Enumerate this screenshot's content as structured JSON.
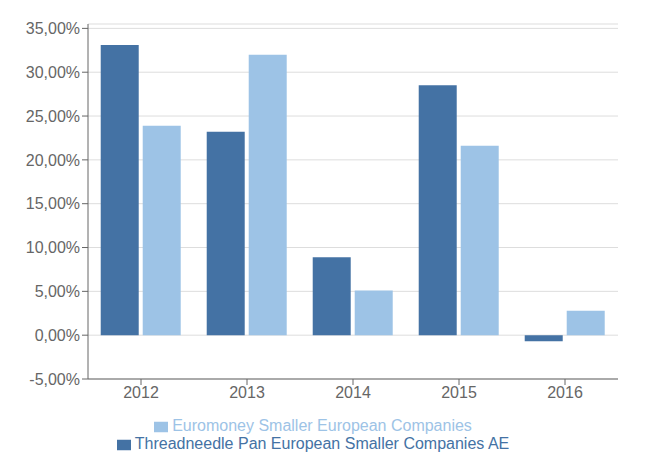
{
  "chart_data": {
    "type": "bar",
    "categories": [
      "2012",
      "2013",
      "2014",
      "2015",
      "2016"
    ],
    "series": [
      {
        "name": "Threadneedle Pan European Smaller Companies AE",
        "color": "#4472A4",
        "values": [
          0.331,
          0.232,
          0.089,
          0.285,
          -0.007
        ]
      },
      {
        "name": "Euromoney Smaller European Companies",
        "color": "#9DC3E6",
        "values": [
          0.239,
          0.32,
          0.051,
          0.216,
          0.028
        ]
      }
    ],
    "ylim": [
      -0.05,
      0.355
    ],
    "yticks": [
      {
        "value": -0.05,
        "label": "-5,00%"
      },
      {
        "value": 0,
        "label": "0,00%"
      },
      {
        "value": 0.05,
        "label": "5,00%"
      },
      {
        "value": 0.1,
        "label": "10,00%"
      },
      {
        "value": 0.15,
        "label": "15,00%"
      },
      {
        "value": 0.2,
        "label": "20,00%"
      },
      {
        "value": 0.25,
        "label": "25,00%"
      },
      {
        "value": 0.3,
        "label": "30,00%"
      },
      {
        "value": 0.35,
        "label": "35,00%"
      }
    ],
    "grid": true,
    "legend": "bottom"
  }
}
